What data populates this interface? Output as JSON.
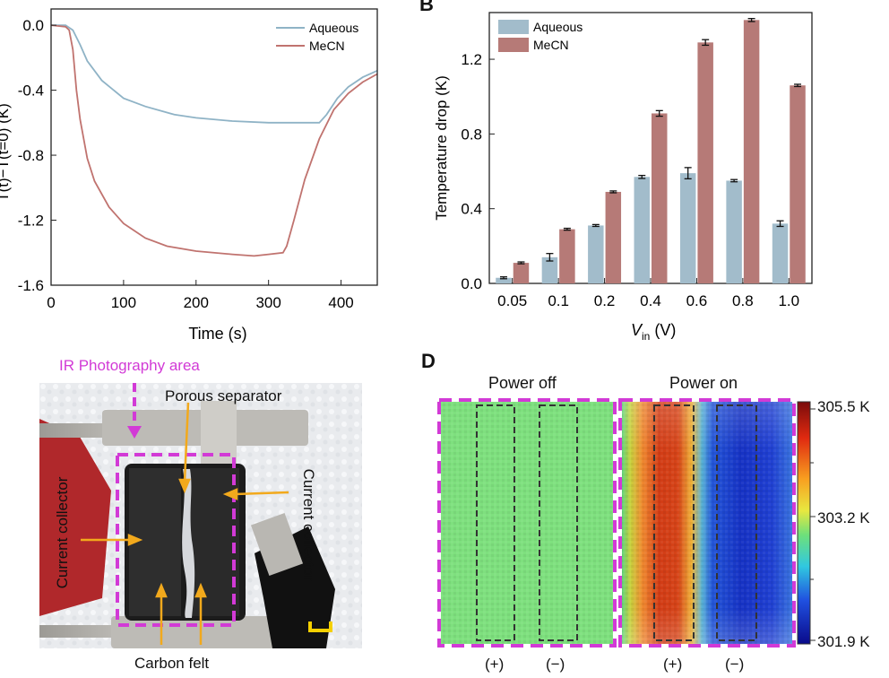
{
  "chart_data": [
    {
      "type": "line",
      "panel": "A",
      "xlabel": "Time (s)",
      "ylabel": "T(t)−T(t=0) (K)",
      "xlim": [
        0,
        450
      ],
      "ylim": [
        -1.6,
        0.1
      ],
      "xticks": [
        0,
        100,
        200,
        300,
        400
      ],
      "yticks": [
        0.0,
        -0.4,
        -0.8,
        -1.2,
        -1.6
      ],
      "ytick_labels": [
        "0.0",
        "-0.4",
        "-0.8",
        "-1.2",
        "-1.6"
      ],
      "legend": [
        "Aqueous",
        "MeCN"
      ],
      "series": [
        {
          "name": "Aqueous",
          "color": "#8fb3c6",
          "x": [
            0,
            20,
            30,
            40,
            50,
            70,
            100,
            130,
            170,
            200,
            250,
            300,
            330,
            360,
            370,
            380,
            395,
            410,
            430,
            450
          ],
          "y": [
            0.0,
            0.0,
            -0.03,
            -0.12,
            -0.22,
            -0.34,
            -0.45,
            -0.5,
            -0.55,
            -0.57,
            -0.59,
            -0.6,
            -0.6,
            -0.6,
            -0.6,
            -0.55,
            -0.45,
            -0.38,
            -0.32,
            -0.28
          ]
        },
        {
          "name": "MeCN",
          "color": "#c0736f",
          "x": [
            0,
            20,
            25,
            30,
            35,
            40,
            50,
            60,
            80,
            100,
            130,
            160,
            200,
            250,
            280,
            300,
            320,
            325,
            335,
            350,
            370,
            390,
            410,
            430,
            450
          ],
          "y": [
            0.0,
            -0.01,
            -0.03,
            -0.15,
            -0.4,
            -0.58,
            -0.82,
            -0.96,
            -1.12,
            -1.22,
            -1.31,
            -1.36,
            -1.39,
            -1.41,
            -1.42,
            -1.41,
            -1.4,
            -1.36,
            -1.2,
            -0.95,
            -0.7,
            -0.52,
            -0.42,
            -0.35,
            -0.3
          ]
        }
      ]
    },
    {
      "type": "bar",
      "panel": "B",
      "panel_label": "B",
      "xlabel_main": "V",
      "xlabel_sub": "in",
      "xlabel_unit": "(V)",
      "ylabel": "Temperature drop (K)",
      "ylim": [
        0,
        1.45
      ],
      "yticks": [
        0.0,
        0.4,
        0.8,
        1.2
      ],
      "ytick_labels": [
        "0.0",
        "0.4",
        "0.8",
        "1.2"
      ],
      "categories": [
        "0.05",
        "0.1",
        "0.2",
        "0.4",
        "0.6",
        "0.8",
        "1.0"
      ],
      "series": [
        {
          "name": "Aqueous",
          "color": "#a2bccb",
          "values": [
            0.03,
            0.14,
            0.31,
            0.57,
            0.59,
            0.55,
            0.32
          ],
          "errors": [
            0.005,
            0.02,
            0.005,
            0.008,
            0.03,
            0.006,
            0.015
          ]
        },
        {
          "name": "MeCN",
          "color": "#b67a77",
          "values": [
            0.11,
            0.29,
            0.49,
            0.91,
            1.29,
            1.41,
            1.06
          ],
          "errors": [
            0.005,
            0.005,
            0.005,
            0.015,
            0.015,
            0.008,
            0.006
          ]
        }
      ]
    },
    {
      "type": "heatmap",
      "panel": "D",
      "panel_label": "D",
      "title_off": "Power off",
      "title_on": "Power on",
      "colorbar_labels": [
        "305.5 K",
        "303.2 K",
        "301.9 K"
      ],
      "electrode_labels": [
        "(+)",
        "(−)",
        "(+)",
        "(−)"
      ],
      "uniform_temperature_off": "303.2 K"
    }
  ],
  "panel_c": {
    "title": "IR Photography area",
    "labels": {
      "porous_separator": "Porous separator",
      "current_collector_left": "Current collector",
      "current_collector_right": "Current collector",
      "carbon_felt": "Carbon felt"
    }
  },
  "colors": {
    "magenta": "#d23ad6",
    "orange_arrow": "#f2a91c",
    "scale_bar": "#f5d000"
  }
}
